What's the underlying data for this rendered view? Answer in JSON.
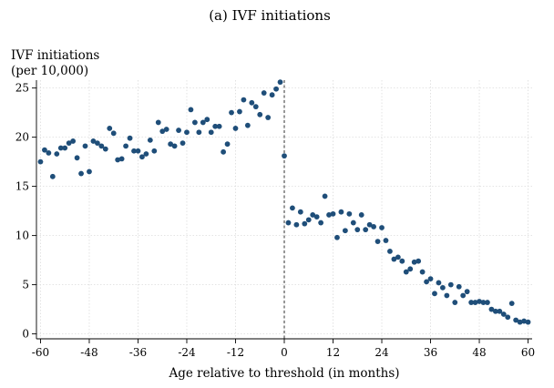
{
  "figure": {
    "panel_title": "(a)  IVF initiations"
  },
  "chart_data": {
    "type": "scatter",
    "title": "(a)  IVF initiations",
    "ylabel_line1": "IVF initiations",
    "ylabel_line2": "(per 10,000)",
    "xlabel": "Age relative to threshold (in months)",
    "xlim": [
      -61,
      61
    ],
    "ylim": [
      -0.5,
      25.8
    ],
    "xticks": [
      -60,
      -48,
      -36,
      -24,
      -12,
      0,
      12,
      24,
      36,
      48,
      60
    ],
    "yticks": [
      0,
      5,
      10,
      15,
      20,
      25
    ],
    "threshold_x": 0,
    "grid": true,
    "marker_color": "#1f4e79",
    "x": [
      -60,
      -59,
      -58,
      -57,
      -56,
      -55,
      -54,
      -53,
      -52,
      -51,
      -50,
      -49,
      -48,
      -47,
      -46,
      -45,
      -44,
      -43,
      -42,
      -41,
      -40,
      -39,
      -38,
      -37,
      -36,
      -35,
      -34,
      -33,
      -32,
      -31,
      -30,
      -29,
      -28,
      -27,
      -26,
      -25,
      -24,
      -23,
      -22,
      -21,
      -20,
      -19,
      -18,
      -17,
      -16,
      -15,
      -14,
      -13,
      -12,
      -11,
      -10,
      -9,
      -8,
      -7,
      -6,
      -5,
      -4,
      -3,
      -2,
      -1,
      0,
      1,
      2,
      3,
      4,
      5,
      6,
      7,
      8,
      9,
      10,
      11,
      12,
      13,
      14,
      15,
      16,
      17,
      18,
      19,
      20,
      21,
      22,
      23,
      24,
      25,
      26,
      27,
      28,
      29,
      30,
      31,
      32,
      33,
      34,
      35,
      36,
      37,
      38,
      39,
      40,
      41,
      42,
      43,
      44,
      45,
      46,
      47,
      48,
      49,
      50,
      51,
      52,
      53,
      54,
      55,
      56,
      57,
      58,
      59,
      60
    ],
    "y": [
      17.5,
      18.7,
      18.4,
      16.0,
      18.3,
      18.9,
      18.9,
      19.4,
      19.6,
      17.9,
      16.3,
      19.1,
      16.5,
      19.6,
      19.4,
      19.1,
      18.8,
      20.9,
      20.4,
      17.7,
      17.8,
      19.1,
      19.9,
      18.6,
      18.6,
      18.0,
      18.3,
      19.7,
      18.6,
      21.5,
      20.6,
      20.8,
      19.3,
      19.1,
      20.7,
      19.4,
      20.5,
      22.8,
      21.5,
      20.5,
      21.5,
      21.8,
      20.5,
      21.1,
      21.1,
      18.5,
      19.3,
      22.5,
      20.9,
      22.6,
      23.8,
      21.2,
      23.5,
      23.1,
      22.3,
      24.5,
      22.0,
      24.3,
      24.9,
      25.6,
      18.1,
      11.3,
      12.8,
      11.1,
      12.4,
      11.2,
      11.6,
      12.1,
      11.9,
      11.3,
      14.0,
      12.1,
      12.2,
      9.8,
      12.4,
      10.5,
      12.2,
      11.3,
      10.6,
      12.1,
      10.6,
      11.1,
      10.9,
      9.4,
      10.8,
      9.5,
      8.4,
      7.6,
      7.8,
      7.4,
      6.3,
      6.6,
      7.3,
      7.4,
      6.3,
      5.3,
      5.6,
      4.1,
      5.2,
      4.7,
      3.9,
      5.0,
      3.2,
      4.8,
      3.9,
      4.3,
      3.2,
      3.2,
      3.3,
      3.2,
      3.2,
      2.5,
      2.3,
      2.3,
      2.0,
      1.7,
      3.1,
      1.4,
      1.2,
      1.3,
      1.2
    ]
  }
}
